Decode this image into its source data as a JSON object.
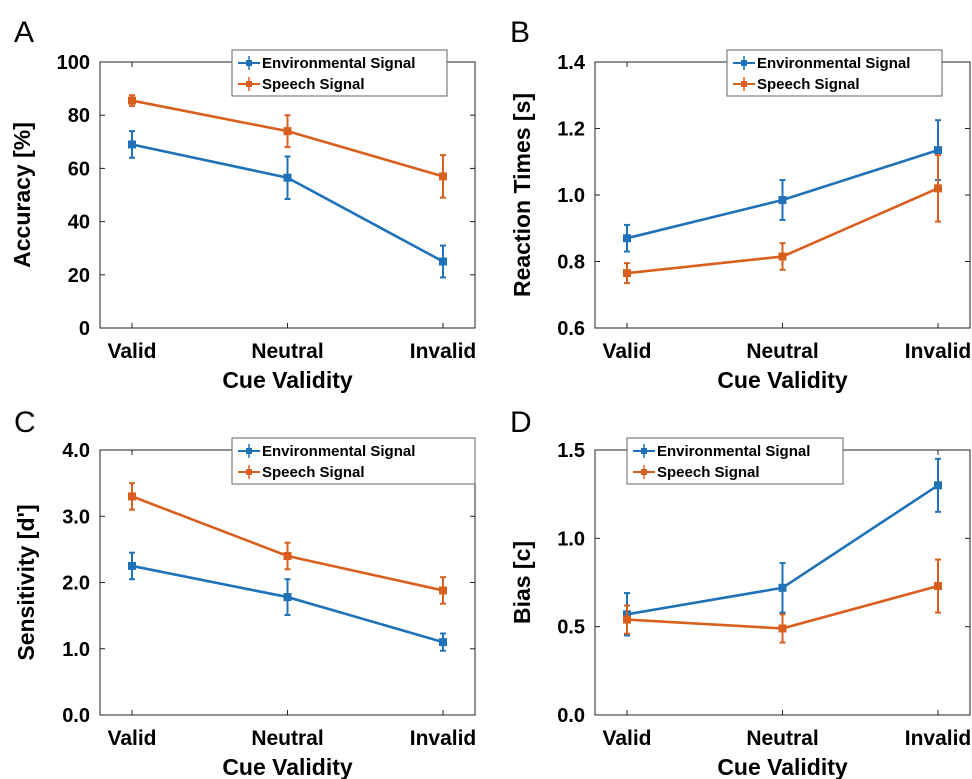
{
  "figure": {
    "colors": {
      "environmental": "#1f72b8",
      "speech": "#d95f1f"
    }
  },
  "chart_data": [
    {
      "panel": "A",
      "type": "line",
      "categories": [
        "Valid",
        "Neutral",
        "Invalid"
      ],
      "xlabel": "Cue Validity",
      "ylabel": "Accuracy [%]",
      "ylim": [
        0,
        100
      ],
      "yticks": [
        "0",
        "20",
        "40",
        "60",
        "80",
        "100"
      ],
      "grid": false,
      "legend": "top-right",
      "series": [
        {
          "name": "Environmental Signal",
          "values": [
            69,
            56.5,
            25
          ],
          "err": [
            5,
            8,
            6
          ]
        },
        {
          "name": "Speech Signal",
          "values": [
            85.5,
            74,
            57
          ],
          "err": [
            2,
            6,
            8
          ]
        }
      ]
    },
    {
      "panel": "B",
      "type": "line",
      "categories": [
        "Valid",
        "Neutral",
        "Invalid"
      ],
      "xlabel": "Cue Validity",
      "ylabel": "Reaction Times [s]",
      "ylim": [
        0.6,
        1.4
      ],
      "yticks": [
        "0.6",
        "0.8",
        "1.0",
        "1.2",
        "1.4"
      ],
      "grid": false,
      "legend": "top-right",
      "series": [
        {
          "name": "Environmental Signal",
          "values": [
            0.87,
            0.985,
            1.135
          ],
          "err": [
            0.04,
            0.06,
            0.09
          ]
        },
        {
          "name": "Speech Signal",
          "values": [
            0.765,
            0.815,
            1.02
          ],
          "err": [
            0.03,
            0.04,
            0.1
          ]
        }
      ]
    },
    {
      "panel": "C",
      "type": "line",
      "categories": [
        "Valid",
        "Neutral",
        "Invalid"
      ],
      "xlabel": "Cue Validity",
      "ylabel": "Sensitivity [d']",
      "ylim": [
        0,
        4
      ],
      "yticks": [
        "0.0",
        "1.0",
        "2.0",
        "3.0",
        "4.0"
      ],
      "grid": false,
      "legend": "top-right",
      "series": [
        {
          "name": "Environmental Signal",
          "values": [
            2.25,
            1.78,
            1.1
          ],
          "err": [
            0.2,
            0.27,
            0.13
          ]
        },
        {
          "name": "Speech Signal",
          "values": [
            3.3,
            2.4,
            1.88
          ],
          "err": [
            0.2,
            0.2,
            0.2
          ]
        }
      ]
    },
    {
      "panel": "D",
      "type": "line",
      "categories": [
        "Valid",
        "Neutral",
        "Invalid"
      ],
      "xlabel": "Cue Validity",
      "ylabel": "Bias [c]",
      "ylim": [
        0,
        1.5
      ],
      "yticks": [
        "0.0",
        "0.5",
        "1.0",
        "1.5"
      ],
      "grid": false,
      "legend": "top-left",
      "series": [
        {
          "name": "Environmental Signal",
          "values": [
            0.57,
            0.72,
            1.3
          ],
          "err": [
            0.12,
            0.14,
            0.15
          ]
        },
        {
          "name": "Speech Signal",
          "values": [
            0.54,
            0.49,
            0.73
          ],
          "err": [
            0.08,
            0.08,
            0.15
          ]
        }
      ]
    }
  ]
}
